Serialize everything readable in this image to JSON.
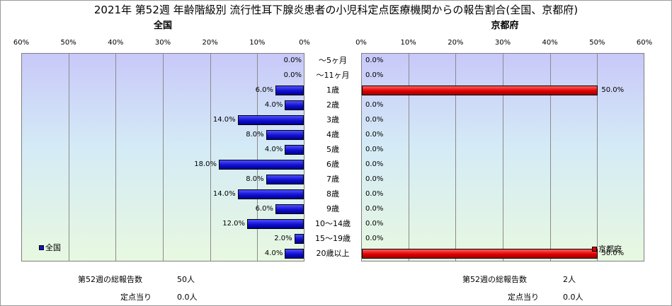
{
  "title": "2021年 第52週 年齢階級別 流行性耳下腺炎患者の小児科定点医療機関からの報告割合(全国、京都府)",
  "colors": {
    "national_bar": "#1010d0",
    "kyoto_bar": "#e00000"
  },
  "chart_data": [
    {
      "type": "bar",
      "orientation": "horizontal",
      "direction": "right-to-left",
      "title": "全国",
      "legend": "全国",
      "legend_placement": "bottom-left",
      "ylim": [
        0,
        60
      ],
      "tick_labels": [
        "60%",
        "50%",
        "40%",
        "30%",
        "20%",
        "10%",
        "0%"
      ],
      "categories": [
        "～5ヶ月",
        "～11ヶ月",
        "1歳",
        "2歳",
        "3歳",
        "4歳",
        "5歳",
        "6歳",
        "7歳",
        "8歳",
        "9歳",
        "10～14歳",
        "15～19歳",
        "20歳以上"
      ],
      "values": [
        0.0,
        0.0,
        6.0,
        4.0,
        14.0,
        8.0,
        4.0,
        18.0,
        8.0,
        14.0,
        6.0,
        12.0,
        2.0,
        4.0
      ],
      "value_labels": [
        "0.0%",
        "0.0%",
        "6.0%",
        "4.0%",
        "14.0%",
        "8.0%",
        "4.0%",
        "18.0%",
        "8.0%",
        "14.0%",
        "6.0%",
        "12.0%",
        "2.0%",
        "4.0%"
      ],
      "grid": true
    },
    {
      "type": "bar",
      "orientation": "horizontal",
      "direction": "left-to-right",
      "title": "京都府",
      "legend": "京都府",
      "legend_placement": "bottom-right",
      "ylim": [
        0,
        60
      ],
      "tick_labels": [
        "0%",
        "10%",
        "20%",
        "30%",
        "40%",
        "50%",
        "60%"
      ],
      "categories": [
        "～5ヶ月",
        "～11ヶ月",
        "1歳",
        "2歳",
        "3歳",
        "4歳",
        "5歳",
        "6歳",
        "7歳",
        "8歳",
        "9歳",
        "10～14歳",
        "15～19歳",
        "20歳以上"
      ],
      "values": [
        0.0,
        0.0,
        50.0,
        0.0,
        0.0,
        0.0,
        0.0,
        0.0,
        0.0,
        0.0,
        0.0,
        0.0,
        0.0,
        50.0
      ],
      "value_labels": [
        "0.0%",
        "0.0%",
        "50.0%",
        "0.0%",
        "0.0%",
        "0.0%",
        "0.0%",
        "0.0%",
        "0.0%",
        "0.0%",
        "0.0%",
        "0.0%",
        "0.0%",
        "50.0%"
      ],
      "grid": true
    }
  ],
  "footer": {
    "national": {
      "total_label": "第52週の総報告数",
      "total_value": "50人",
      "per_label": "定点当り",
      "per_value": "0.0人"
    },
    "kyoto": {
      "total_label": "第52週の総報告数",
      "total_value": "2人",
      "per_label": "定点当り",
      "per_value": "0.0人"
    }
  }
}
